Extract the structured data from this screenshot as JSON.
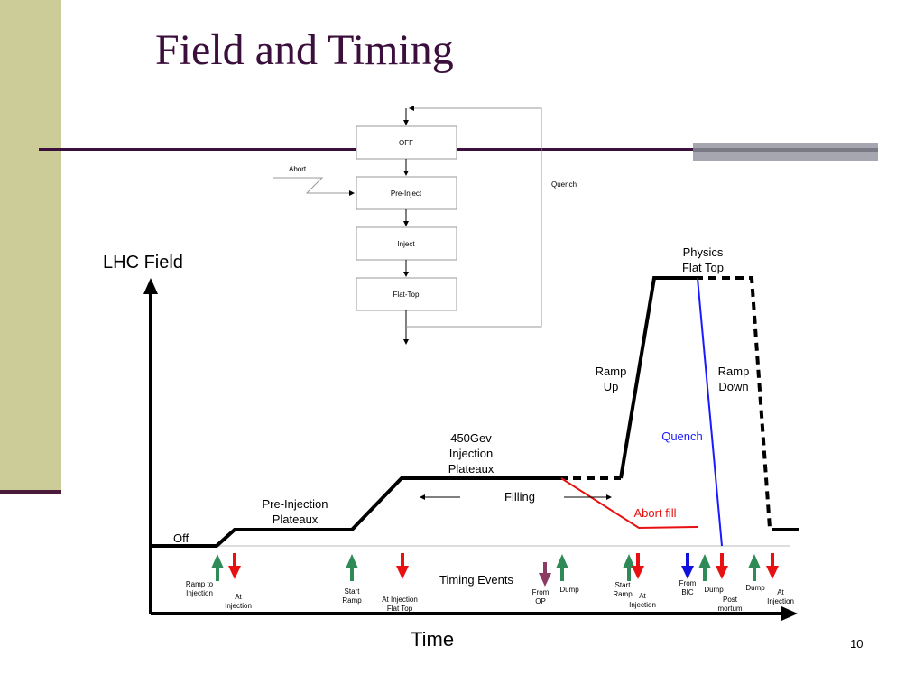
{
  "slide": {
    "title": "Field and Timing",
    "page_number": "10"
  },
  "state_machine": {
    "states": [
      "OFF",
      "Pre-Inject",
      "Inject",
      "Flat-Top"
    ],
    "abort_label": "Abort",
    "quench_label": "Quench"
  },
  "diagram": {
    "y_axis_label": "LHC Field",
    "x_axis_label": "Time",
    "labels": {
      "off": "Off",
      "pre_injection_1": "Pre-Injection",
      "pre_injection_2": "Plateaux",
      "injection_1": "450Gev",
      "injection_2": "Injection",
      "injection_3": "Plateaux",
      "filling": "Filling",
      "ramp_up_1": "Ramp",
      "ramp_up_2": "Up",
      "physics_1": "Physics",
      "physics_2": "Flat Top",
      "ramp_down_1": "Ramp",
      "ramp_down_2": "Down",
      "quench": "Quench",
      "abort_fill": "Abort fill",
      "timing_events": "Timing Events"
    },
    "colors": {
      "green": "#2e8b57",
      "red": "#e81010",
      "blue": "#1010e0",
      "purple": "#8b3a62",
      "quench_line": "#1a1aff",
      "abort_line": "#e81010"
    }
  },
  "events": {
    "ramp_to_1": "Ramp to",
    "ramp_to_2": "Injection",
    "at_inj_a_1": "At",
    "at_inj_a_2": "Injection",
    "start_ramp_a_1": "Start",
    "start_ramp_a_2": "Ramp",
    "at_inj_flat_1": "At Injection",
    "at_inj_flat_2": "Flat Top",
    "from_op_1": "From",
    "from_op_2": "OP",
    "dump_a": "Dump",
    "start_ramp_b_1": "Start",
    "start_ramp_b_2": "Ramp",
    "at_inj_b_1": "At",
    "at_inj_b_2": "Injection",
    "from_bic_1": "From",
    "from_bic_2": "BIC",
    "dump_b": "Dump",
    "post_mortem_1": "Post",
    "post_mortem_2": "mortum",
    "dump_c": "Dump",
    "at_inj_c_1": "At",
    "at_inj_c_2": "Injection"
  }
}
